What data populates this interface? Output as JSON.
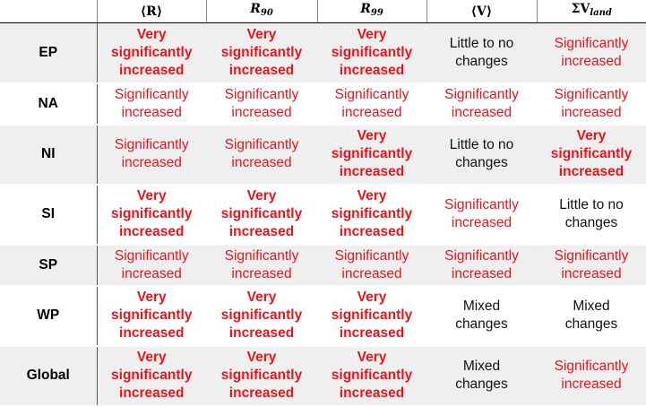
{
  "columns": {
    "c1": "⟨R⟩",
    "c2_main": "R",
    "c2_sub": "90",
    "c3_main": "R",
    "c3_sub": "99",
    "c4": "⟨V⟩",
    "c5_main": "ΣV",
    "c5_sub": "land"
  },
  "colors": {
    "red": "#e8141c",
    "shade": "#efefef"
  },
  "rows": [
    {
      "region": "EP",
      "cells": [
        "Very significantly increased",
        "Very significantly increased",
        "Very significantly increased",
        "Little to no changes",
        "Significantly increased"
      ]
    },
    {
      "region": "NA",
      "cells": [
        "Significantly increased",
        "Significantly increased",
        "Significantly increased",
        "Significantly increased",
        "Significantly increased"
      ]
    },
    {
      "region": "NI",
      "cells": [
        "Significantly increased",
        "Significantly increased",
        "Very significantly increased",
        "Little to no changes",
        "Very significantly increased"
      ]
    },
    {
      "region": "SI",
      "cells": [
        "Very significantly increased",
        "Very significantly increased",
        "Very significantly increased",
        "Significantly increased",
        "Little to no changes"
      ]
    },
    {
      "region": "SP",
      "cells": [
        "Significantly increased",
        "Significantly increased",
        "Significantly increased",
        "Significantly increased",
        "Significantly increased"
      ]
    },
    {
      "region": "WP",
      "cells": [
        "Very significantly increased",
        "Very significantly increased",
        "Very significantly increased",
        "Mixed changes",
        "Mixed changes"
      ]
    },
    {
      "region": "Global",
      "cells": [
        "Very significantly increased",
        "Very significantly increased",
        "Very significantly increased",
        "Mixed changes",
        "Significantly increased"
      ]
    }
  ]
}
